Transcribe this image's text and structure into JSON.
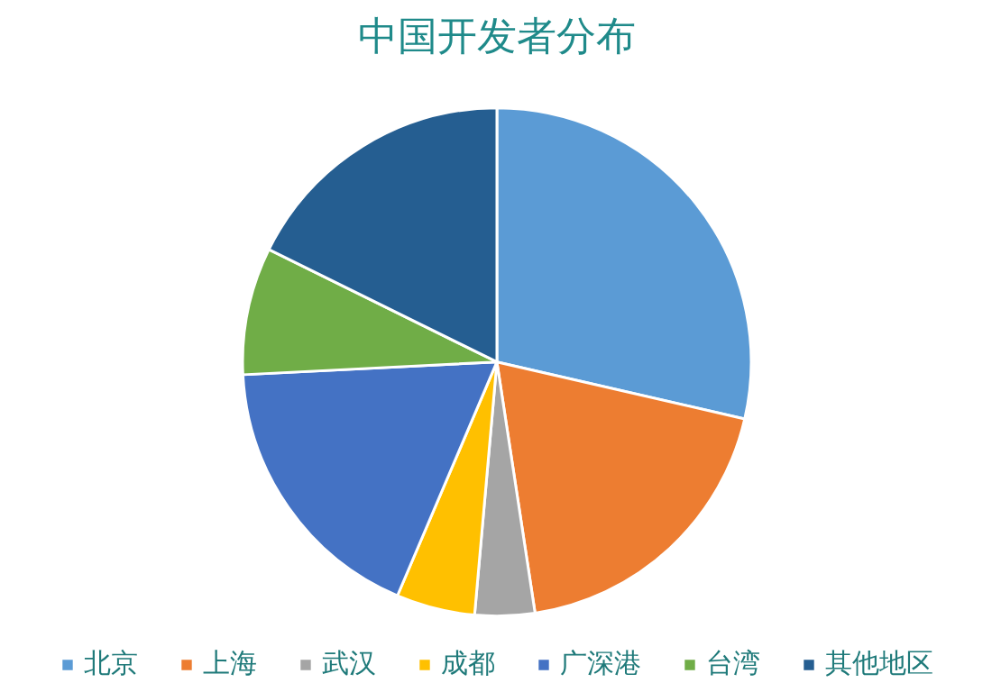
{
  "chart_data": {
    "type": "pie",
    "title": "中国开发者分布",
    "categories": [
      "北京",
      "上海",
      "武汉",
      "成都",
      "广深港",
      "台湾",
      "其他地区"
    ],
    "values": [
      28.6,
      19.0,
      3.8,
      5.0,
      17.8,
      8.1,
      17.7
    ],
    "colors": [
      "#5b9bd5",
      "#ed7d31",
      "#a5a5a5",
      "#ffc000",
      "#4472c4",
      "#70ad47",
      "#255e91"
    ],
    "legend": "bottom"
  }
}
